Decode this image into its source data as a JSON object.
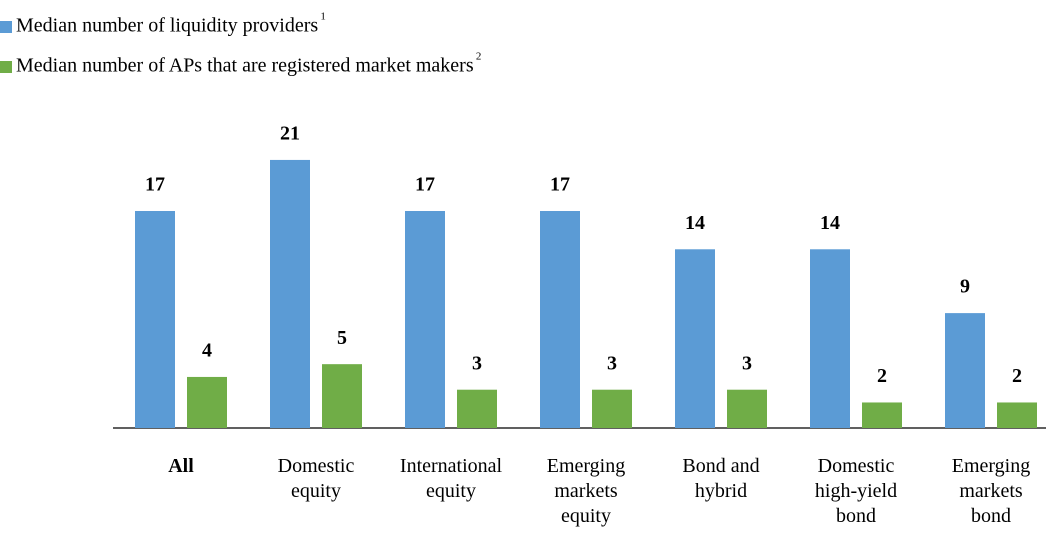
{
  "chart_data": {
    "type": "bar",
    "categories": [
      "All",
      "Domestic\nequity",
      "International\nequity",
      "Emerging\nmarkets\nequity",
      "Bond and\nhybrid",
      "Domestic\nhigh-yield\nbond",
      "Emerging\nmarkets\nbond"
    ],
    "series": [
      {
        "name": "Median number of liquidity providers",
        "footnote": "1",
        "color": "#5b9bd5",
        "values": [
          17,
          21,
          17,
          17,
          14,
          14,
          9
        ]
      },
      {
        "name": "Median number of APs that are registered market makers",
        "footnote": "2",
        "color": "#70ad47",
        "values": [
          4,
          5,
          3,
          3,
          3,
          2,
          2
        ]
      }
    ],
    "ylim": [
      0,
      23
    ]
  }
}
